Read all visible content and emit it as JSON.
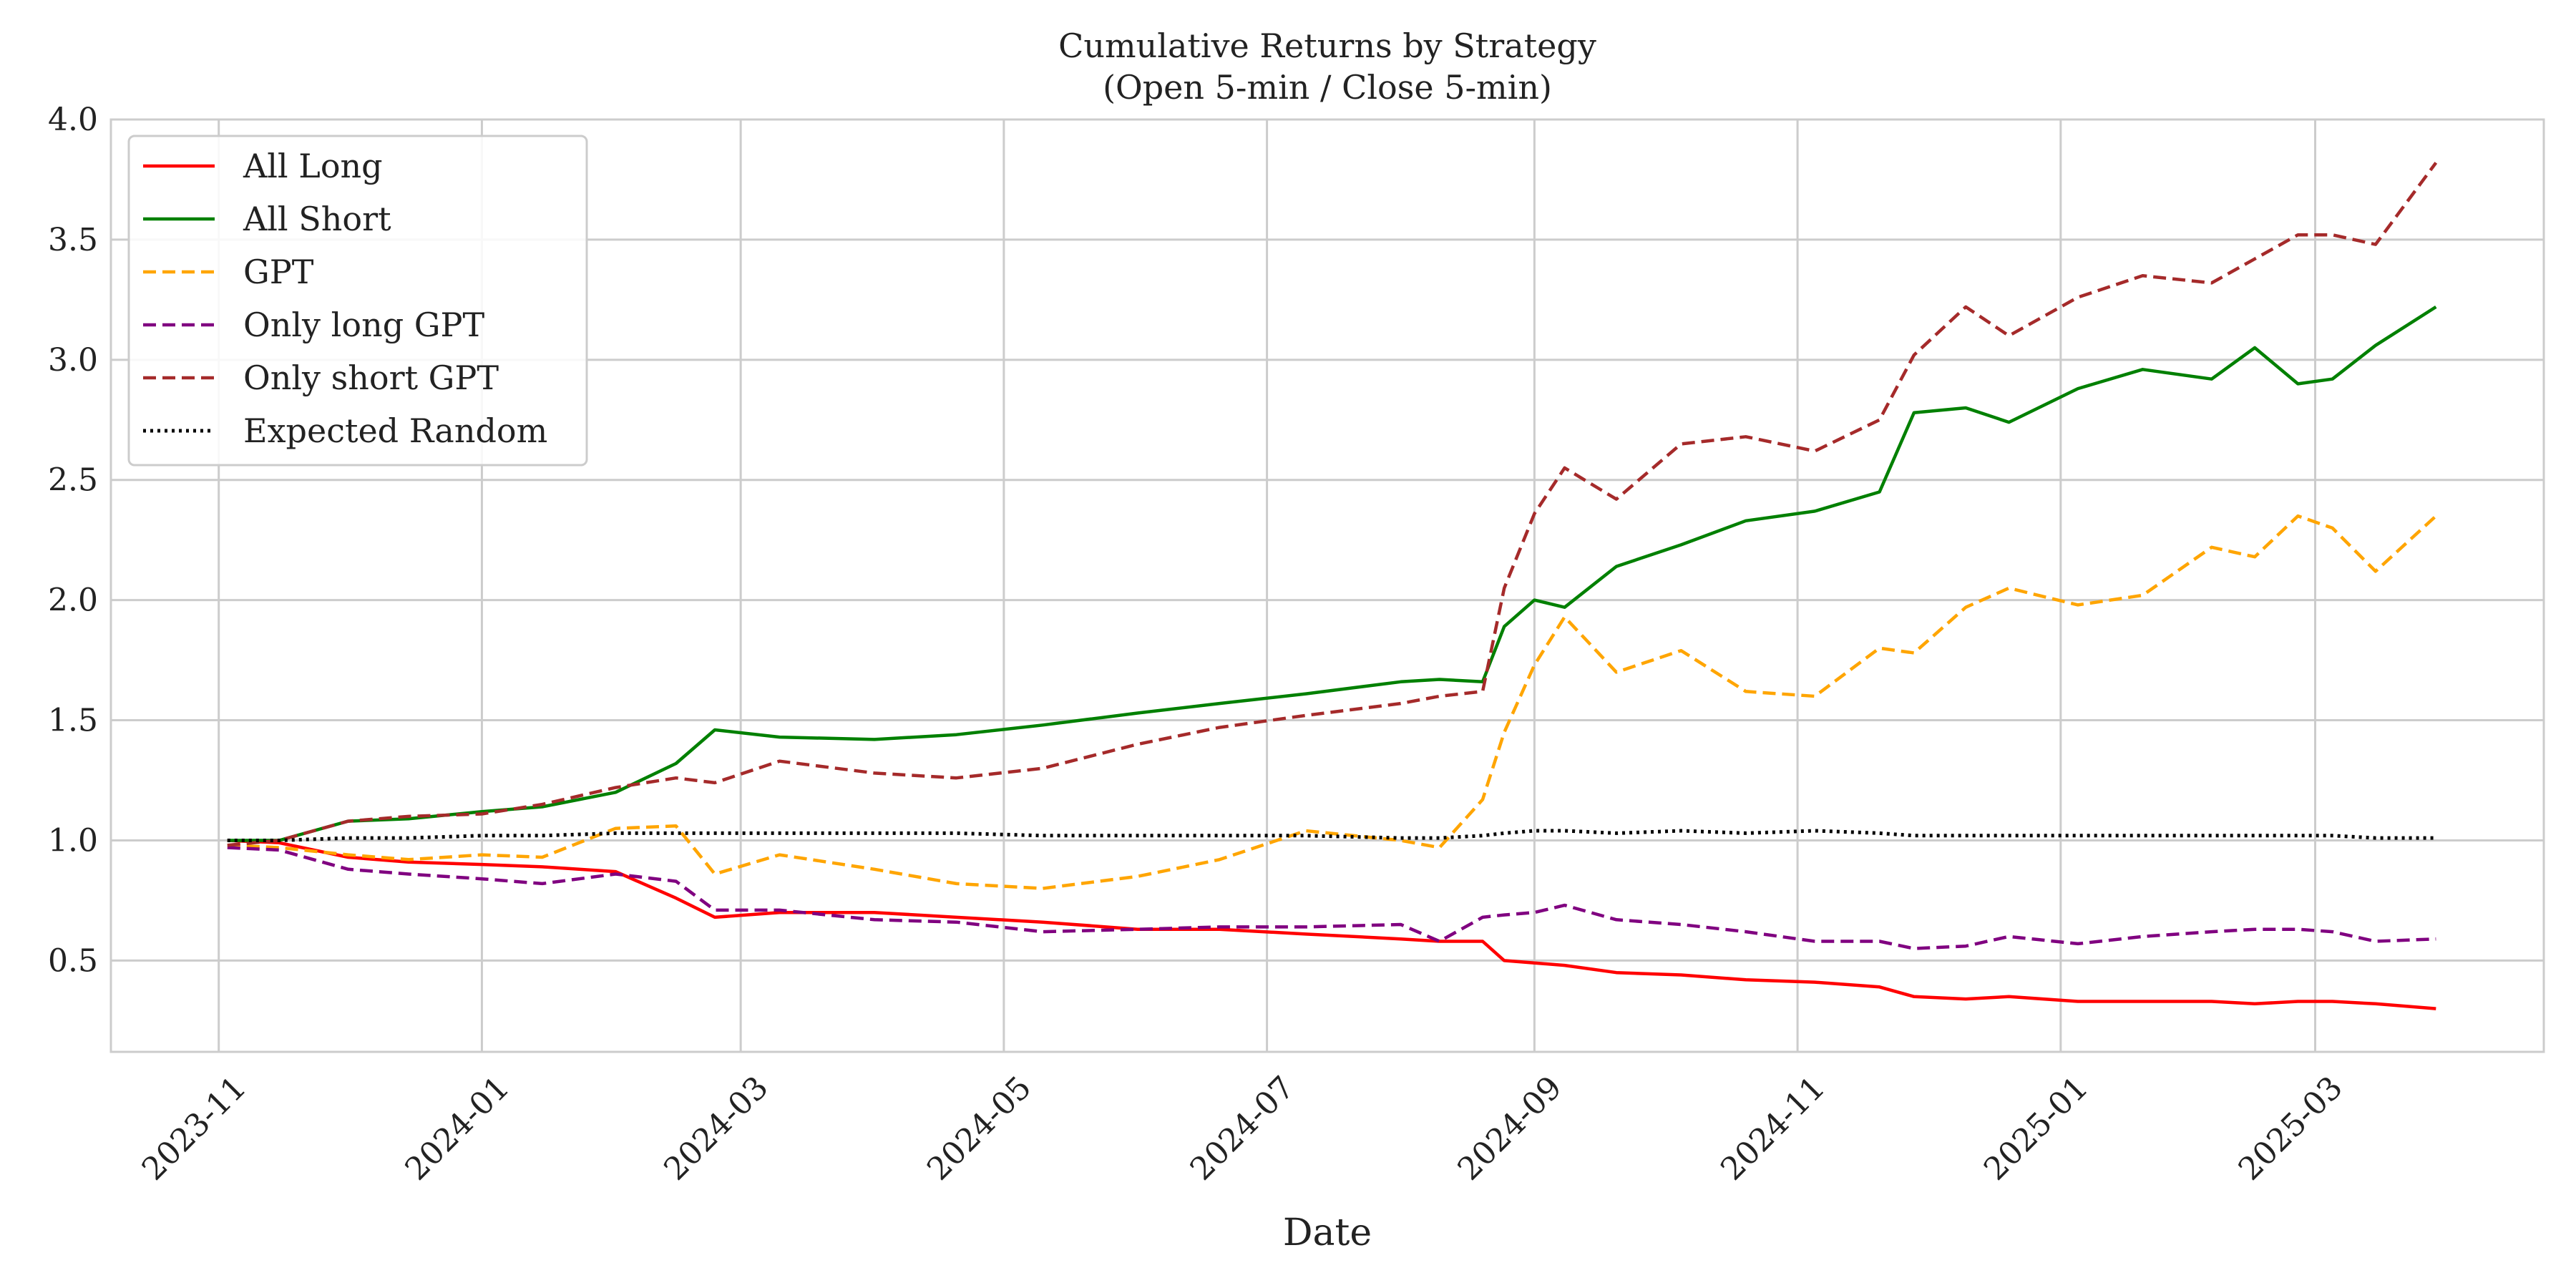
{
  "chart_data": {
    "type": "line",
    "title": "Cumulative Returns by Strategy",
    "subtitle": "(Open 5-min / Close 5-min)",
    "xlabel": "Date",
    "ylabel": "",
    "x_ticks": [
      "2023-11",
      "2024-01",
      "2024-03",
      "2024-05",
      "2024-07",
      "2024-09",
      "2024-11",
      "2025-01",
      "2025-03"
    ],
    "y_ticks": [
      "0.5",
      "1.0",
      "1.5",
      "2.0",
      "2.5",
      "3.0",
      "3.5",
      "4.0"
    ],
    "xlim": [
      "2023-10-07",
      "2025-04-23"
    ],
    "ylim": [
      0.12,
      4.0
    ],
    "grid": true,
    "legend_position": "top-left",
    "x": [
      "2023-11-03",
      "2023-11-15",
      "2023-12-01",
      "2023-12-15",
      "2024-01-01",
      "2024-01-15",
      "2024-02-01",
      "2024-02-15",
      "2024-02-24",
      "2024-03-10",
      "2024-04-01",
      "2024-04-20",
      "2024-05-10",
      "2024-06-01",
      "2024-06-20",
      "2024-07-10",
      "2024-08-01",
      "2024-08-10",
      "2024-08-20",
      "2024-08-25",
      "2024-09-01",
      "2024-09-08",
      "2024-09-20",
      "2024-10-05",
      "2024-10-20",
      "2024-11-05",
      "2024-11-20",
      "2024-11-28",
      "2024-12-10",
      "2024-12-20",
      "2025-01-05",
      "2025-01-20",
      "2025-02-05",
      "2025-02-15",
      "2025-02-25",
      "2025-03-05",
      "2025-03-15",
      "2025-03-29"
    ],
    "series": [
      {
        "name": "All Long",
        "color": "#ff0000",
        "dash": "solid",
        "values": [
          1.0,
          0.99,
          0.93,
          0.91,
          0.9,
          0.89,
          0.87,
          0.76,
          0.68,
          0.7,
          0.7,
          0.68,
          0.66,
          0.63,
          0.63,
          0.61,
          0.59,
          0.58,
          0.58,
          0.5,
          0.49,
          0.48,
          0.45,
          0.44,
          0.42,
          0.41,
          0.39,
          0.35,
          0.34,
          0.35,
          0.33,
          0.33,
          0.33,
          0.32,
          0.33,
          0.33,
          0.32,
          0.3
        ]
      },
      {
        "name": "All Short",
        "color": "#008000",
        "dash": "solid",
        "values": [
          1.0,
          1.0,
          1.08,
          1.09,
          1.12,
          1.14,
          1.2,
          1.32,
          1.46,
          1.43,
          1.42,
          1.44,
          1.48,
          1.53,
          1.57,
          1.61,
          1.66,
          1.67,
          1.66,
          1.89,
          2.0,
          1.97,
          2.14,
          2.23,
          2.33,
          2.37,
          2.45,
          2.78,
          2.8,
          2.74,
          2.88,
          2.96,
          2.92,
          3.05,
          2.9,
          2.92,
          3.06,
          3.22
        ]
      },
      {
        "name": "GPT",
        "color": "#ffa500",
        "dash": "dashed",
        "values": [
          0.98,
          0.97,
          0.94,
          0.92,
          0.94,
          0.93,
          1.05,
          1.06,
          0.86,
          0.94,
          0.88,
          0.82,
          0.8,
          0.85,
          0.92,
          1.04,
          1.0,
          0.97,
          1.17,
          1.45,
          1.73,
          1.93,
          1.7,
          1.79,
          1.62,
          1.6,
          1.8,
          1.78,
          1.97,
          2.05,
          1.98,
          2.02,
          2.22,
          2.18,
          2.35,
          2.3,
          2.12,
          2.35
        ]
      },
      {
        "name": "Only long GPT",
        "color": "#800080",
        "dash": "dashed",
        "values": [
          0.97,
          0.96,
          0.88,
          0.86,
          0.84,
          0.82,
          0.86,
          0.83,
          0.71,
          0.71,
          0.67,
          0.66,
          0.62,
          0.63,
          0.64,
          0.64,
          0.65,
          0.58,
          0.68,
          0.69,
          0.7,
          0.73,
          0.67,
          0.65,
          0.62,
          0.58,
          0.58,
          0.55,
          0.56,
          0.6,
          0.57,
          0.6,
          0.62,
          0.63,
          0.63,
          0.62,
          0.58,
          0.59
        ]
      },
      {
        "name": "Only short GPT",
        "color": "#a52a2a",
        "dash": "dashed",
        "values": [
          0.98,
          1.0,
          1.08,
          1.1,
          1.11,
          1.15,
          1.22,
          1.26,
          1.24,
          1.33,
          1.28,
          1.26,
          1.3,
          1.4,
          1.47,
          1.52,
          1.57,
          1.6,
          1.62,
          2.05,
          2.36,
          2.55,
          2.42,
          2.65,
          2.68,
          2.62,
          2.75,
          3.02,
          3.22,
          3.1,
          3.26,
          3.35,
          3.32,
          3.42,
          3.52,
          3.52,
          3.48,
          3.82
        ]
      },
      {
        "name": "Expected Random",
        "color": "#000000",
        "dash": "dotted",
        "values": [
          1.0,
          1.0,
          1.01,
          1.01,
          1.02,
          1.02,
          1.03,
          1.03,
          1.03,
          1.03,
          1.03,
          1.03,
          1.02,
          1.02,
          1.02,
          1.02,
          1.01,
          1.01,
          1.02,
          1.03,
          1.04,
          1.04,
          1.03,
          1.04,
          1.03,
          1.04,
          1.03,
          1.02,
          1.02,
          1.02,
          1.02,
          1.02,
          1.02,
          1.02,
          1.02,
          1.02,
          1.01,
          1.01
        ]
      }
    ]
  }
}
